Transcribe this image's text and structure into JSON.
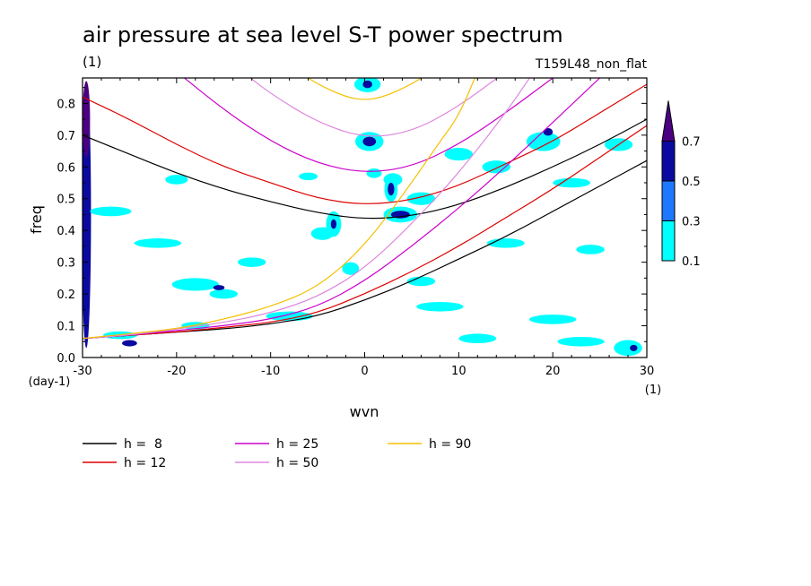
{
  "chart_data": {
    "type": "heatmap",
    "title": "air pressure at sea level S-T power spectrum",
    "subtitle_left": "(1)",
    "subtitle_right": "T159L48_non_flat",
    "xlabel": "wvn",
    "ylabel": "freq",
    "x_unit": "(1)",
    "y_unit": "(day-1)",
    "xlim": [
      -30,
      30
    ],
    "ylim": [
      0,
      0.88
    ],
    "x_ticks": [
      -30,
      -20,
      -10,
      0,
      10,
      20,
      30
    ],
    "x_tick_labels": [
      "-30",
      "-20",
      "-10",
      "0",
      "10",
      "20",
      "30"
    ],
    "y_ticks": [
      0,
      0.1,
      0.2,
      0.3,
      0.4,
      0.5,
      0.6,
      0.7,
      0.8
    ],
    "y_tick_labels": [
      "0.0",
      "0.1",
      "0.2",
      "0.3",
      "0.4",
      "0.5",
      "0.6",
      "0.7",
      "0.8"
    ],
    "colorbar": {
      "levels": [
        0.1,
        0.3,
        0.5,
        0.7
      ],
      "labels": [
        "0.1",
        "0.3",
        "0.5",
        "0.7"
      ],
      "colors": [
        "#00ffff",
        "#1e78ff",
        "#0a0aa0",
        "#4b0082"
      ],
      "extend": "max"
    },
    "shading_blobs": [
      {
        "x": -29.6,
        "y": 0.45,
        "rx": 0.5,
        "ry": 0.42,
        "level": 2
      },
      {
        "x": -29.6,
        "y": 0.75,
        "rx": 0.4,
        "ry": 0.12,
        "level": 3
      },
      {
        "x": -27,
        "y": 0.46,
        "rx": 2.2,
        "ry": 0.015,
        "level": 0
      },
      {
        "x": -22,
        "y": 0.36,
        "rx": 2.5,
        "ry": 0.015,
        "level": 0
      },
      {
        "x": -18,
        "y": 0.23,
        "rx": 2.5,
        "ry": 0.02,
        "level": 0
      },
      {
        "x": -15,
        "y": 0.2,
        "rx": 1.5,
        "ry": 0.015,
        "level": 0
      },
      {
        "x": -15.5,
        "y": 0.22,
        "rx": 0.6,
        "ry": 0.008,
        "level": 2
      },
      {
        "x": -26,
        "y": 0.07,
        "rx": 1.8,
        "ry": 0.012,
        "level": 0
      },
      {
        "x": -25,
        "y": 0.045,
        "rx": 0.8,
        "ry": 0.01,
        "level": 2
      },
      {
        "x": -8,
        "y": 0.13,
        "rx": 2.5,
        "ry": 0.015,
        "level": 0
      },
      {
        "x": 0.3,
        "y": 0.86,
        "rx": 1.4,
        "ry": 0.025,
        "level": 0
      },
      {
        "x": 0.3,
        "y": 0.86,
        "rx": 0.5,
        "ry": 0.012,
        "level": 2
      },
      {
        "x": 0.5,
        "y": 0.68,
        "rx": 1.5,
        "ry": 0.03,
        "level": 0
      },
      {
        "x": 0.5,
        "y": 0.68,
        "rx": 0.7,
        "ry": 0.015,
        "level": 2
      },
      {
        "x": 1,
        "y": 0.58,
        "rx": 0.8,
        "ry": 0.015,
        "level": 0
      },
      {
        "x": 3,
        "y": 0.56,
        "rx": 1,
        "ry": 0.02,
        "level": 0
      },
      {
        "x": 2.8,
        "y": 0.53,
        "rx": 0.7,
        "ry": 0.04,
        "level": 0
      },
      {
        "x": 2.8,
        "y": 0.53,
        "rx": 0.35,
        "ry": 0.02,
        "level": 2
      },
      {
        "x": 3.8,
        "y": 0.45,
        "rx": 1.8,
        "ry": 0.025,
        "level": 0
      },
      {
        "x": 3.8,
        "y": 0.45,
        "rx": 1,
        "ry": 0.012,
        "level": 2
      },
      {
        "x": -3.3,
        "y": 0.42,
        "rx": 0.8,
        "ry": 0.04,
        "level": 0
      },
      {
        "x": -3.3,
        "y": 0.42,
        "rx": 0.3,
        "ry": 0.015,
        "level": 2
      },
      {
        "x": -4.5,
        "y": 0.39,
        "rx": 1.2,
        "ry": 0.02,
        "level": 0
      },
      {
        "x": -1.5,
        "y": 0.28,
        "rx": 0.9,
        "ry": 0.02,
        "level": 0
      },
      {
        "x": 6,
        "y": 0.5,
        "rx": 1.5,
        "ry": 0.02,
        "level": 0
      },
      {
        "x": 8,
        "y": 0.16,
        "rx": 2.5,
        "ry": 0.015,
        "level": 0
      },
      {
        "x": 10,
        "y": 0.64,
        "rx": 1.5,
        "ry": 0.02,
        "level": 0
      },
      {
        "x": 14,
        "y": 0.6,
        "rx": 1.5,
        "ry": 0.02,
        "level": 0
      },
      {
        "x": 15,
        "y": 0.36,
        "rx": 2,
        "ry": 0.015,
        "level": 0
      },
      {
        "x": 19,
        "y": 0.68,
        "rx": 1.8,
        "ry": 0.03,
        "level": 0
      },
      {
        "x": 19.5,
        "y": 0.71,
        "rx": 0.5,
        "ry": 0.012,
        "level": 2
      },
      {
        "x": 22,
        "y": 0.55,
        "rx": 2,
        "ry": 0.015,
        "level": 0
      },
      {
        "x": 24,
        "y": 0.34,
        "rx": 1.5,
        "ry": 0.015,
        "level": 0
      },
      {
        "x": 20,
        "y": 0.12,
        "rx": 2.5,
        "ry": 0.015,
        "level": 0
      },
      {
        "x": 23,
        "y": 0.05,
        "rx": 2.5,
        "ry": 0.015,
        "level": 0
      },
      {
        "x": 28,
        "y": 0.03,
        "rx": 1.5,
        "ry": 0.025,
        "level": 0
      },
      {
        "x": 28.6,
        "y": 0.03,
        "rx": 0.4,
        "ry": 0.01,
        "level": 2
      },
      {
        "x": 27,
        "y": 0.67,
        "rx": 1.5,
        "ry": 0.02,
        "level": 0
      },
      {
        "x": 12,
        "y": 0.06,
        "rx": 2,
        "ry": 0.015,
        "level": 0
      },
      {
        "x": -12,
        "y": 0.3,
        "rx": 1.5,
        "ry": 0.015,
        "level": 0
      },
      {
        "x": -20,
        "y": 0.56,
        "rx": 1.2,
        "ry": 0.015,
        "level": 0
      },
      {
        "x": -18,
        "y": 0.1,
        "rx": 1.5,
        "ry": 0.012,
        "level": 0
      },
      {
        "x": 6,
        "y": 0.24,
        "rx": 1.5,
        "ry": 0.015,
        "level": 0
      },
      {
        "x": -6,
        "y": 0.57,
        "rx": 1,
        "ry": 0.012,
        "level": 0
      }
    ],
    "dispersion_curves": {
      "units": "x: zonal wavenumber, y: day-1",
      "series": [
        {
          "name": "h =  8",
          "color": "#000000",
          "upper": [
            [
              -30,
              0.7
            ],
            [
              -25,
              0.64
            ],
            [
              -20,
              0.58
            ],
            [
              -15,
              0.53
            ],
            [
              -10,
              0.49
            ],
            [
              -5,
              0.455
            ],
            [
              0,
              0.435
            ],
            [
              5,
              0.445
            ],
            [
              10,
              0.48
            ],
            [
              15,
              0.535
            ],
            [
              20,
              0.6
            ],
            [
              25,
              0.67
            ],
            [
              30,
              0.75
            ]
          ],
          "lower": [
            [
              -30,
              0.06
            ],
            [
              -25,
              0.07
            ],
            [
              -20,
              0.08
            ],
            [
              -15,
              0.09
            ],
            [
              -10,
              0.105
            ],
            [
              -5,
              0.13
            ],
            [
              0,
              0.18
            ],
            [
              5,
              0.24
            ],
            [
              10,
              0.31
            ],
            [
              15,
              0.38
            ],
            [
              20,
              0.46
            ],
            [
              25,
              0.54
            ],
            [
              30,
              0.62
            ]
          ]
        },
        {
          "name": "h = 12",
          "color": "#dd0000",
          "upper": [
            [
              -30,
              0.82
            ],
            [
              -25,
              0.75
            ],
            [
              -20,
              0.67
            ],
            [
              -15,
              0.6
            ],
            [
              -10,
              0.55
            ],
            [
              -5,
              0.5
            ],
            [
              0,
              0.48
            ],
            [
              5,
              0.495
            ],
            [
              10,
              0.54
            ],
            [
              15,
              0.61
            ],
            [
              20,
              0.68
            ],
            [
              25,
              0.77
            ],
            [
              30,
              0.86
            ]
          ],
          "lower": [
            [
              -30,
              0.06
            ],
            [
              -25,
              0.07
            ],
            [
              -20,
              0.08
            ],
            [
              -15,
              0.095
            ],
            [
              -10,
              0.11
            ],
            [
              -5,
              0.14
            ],
            [
              0,
              0.2
            ],
            [
              5,
              0.27
            ],
            [
              10,
              0.35
            ],
            [
              15,
              0.44
            ],
            [
              20,
              0.53
            ],
            [
              25,
              0.63
            ],
            [
              30,
              0.73
            ]
          ]
        },
        {
          "name": "h = 25",
          "color": "#cc00cc",
          "upper": [
            [
              -20,
              0.9
            ],
            [
              -15,
              0.78
            ],
            [
              -10,
              0.68
            ],
            [
              -5,
              0.61
            ],
            [
              0,
              0.58
            ],
            [
              5,
              0.6
            ],
            [
              10,
              0.67
            ],
            [
              15,
              0.77
            ],
            [
              20,
              0.88
            ]
          ],
          "lower": [
            [
              -30,
              0.06
            ],
            [
              -25,
              0.07
            ],
            [
              -20,
              0.085
            ],
            [
              -15,
              0.1
            ],
            [
              -10,
              0.12
            ],
            [
              -5,
              0.16
            ],
            [
              0,
              0.24
            ],
            [
              5,
              0.35
            ],
            [
              10,
              0.47
            ],
            [
              15,
              0.6
            ],
            [
              20,
              0.74
            ],
            [
              25,
              0.88
            ]
          ]
        },
        {
          "name": "h = 50",
          "color": "#dd88dd",
          "upper": [
            [
              -13,
              0.9
            ],
            [
              -10,
              0.83
            ],
            [
              -5,
              0.74
            ],
            [
              0,
              0.69
            ],
            [
              5,
              0.71
            ],
            [
              10,
              0.79
            ],
            [
              15,
              0.9
            ]
          ],
          "lower": [
            [
              -30,
              0.06
            ],
            [
              -25,
              0.07
            ],
            [
              -20,
              0.09
            ],
            [
              -15,
              0.11
            ],
            [
              -10,
              0.14
            ],
            [
              -5,
              0.19
            ],
            [
              0,
              0.28
            ],
            [
              5,
              0.42
            ],
            [
              10,
              0.58
            ],
            [
              15,
              0.77
            ],
            [
              18,
              0.9
            ]
          ]
        },
        {
          "name": "h = 90",
          "color": "#f5c000",
          "upper": [
            [
              -7,
              0.9
            ],
            [
              -5,
              0.86
            ],
            [
              -2,
              0.82
            ],
            [
              0,
              0.81
            ],
            [
              2,
              0.82
            ],
            [
              5,
              0.86
            ],
            [
              7,
              0.9
            ]
          ],
          "lower": [
            [
              -30,
              0.06
            ],
            [
              -25,
              0.075
            ],
            [
              -20,
              0.09
            ],
            [
              -15,
              0.12
            ],
            [
              -10,
              0.16
            ],
            [
              -5,
              0.22
            ],
            [
              0,
              0.35
            ],
            [
              5,
              0.55
            ],
            [
              8,
              0.68
            ],
            [
              10,
              0.76
            ],
            [
              12,
              0.9
            ]
          ]
        }
      ]
    }
  }
}
